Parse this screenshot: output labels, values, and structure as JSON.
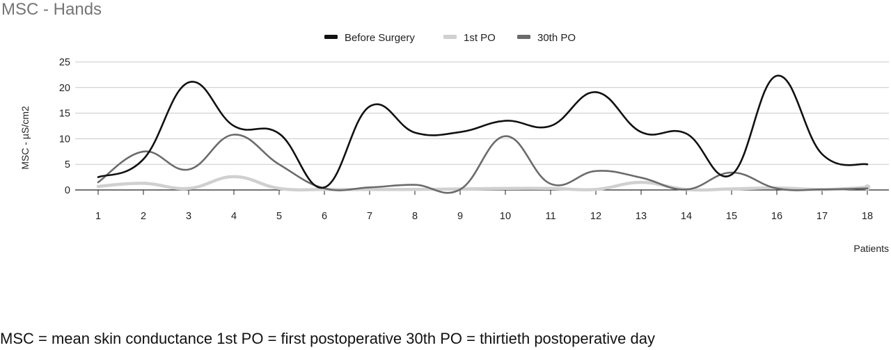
{
  "chart_data": {
    "type": "line",
    "title": "MSC - Hands",
    "xlabel": "Patients",
    "ylabel": "MSC - µS/cm2",
    "categories": [
      "1",
      "2",
      "3",
      "4",
      "5",
      "6",
      "7",
      "8",
      "9",
      "10",
      "11",
      "12",
      "13",
      "14",
      "15",
      "16",
      "17",
      "18"
    ],
    "ylim": [
      0,
      25
    ],
    "yticks": [
      0,
      5,
      10,
      15,
      20,
      25
    ],
    "grid": "horizontal",
    "legend_position": "top-center",
    "series": [
      {
        "name": "Before Surgery",
        "color": "#111111",
        "values": [
          2.5,
          6,
          21,
          12.5,
          11,
          0.5,
          16.3,
          11.2,
          11.3,
          13.5,
          12.5,
          19.1,
          11.3,
          11,
          3,
          22.3,
          7,
          5
        ]
      },
      {
        "name": "1st PO",
        "color": "#d0d0d0",
        "values": [
          0.7,
          1.3,
          0.3,
          2.6,
          0.3,
          0.1,
          0.1,
          0.1,
          0.2,
          0.3,
          0.3,
          0.1,
          1.5,
          0.1,
          0.2,
          0.4,
          0.1,
          0.5
        ]
      },
      {
        "name": "30th PO",
        "color": "#6b6b6b",
        "values": [
          1.5,
          7.5,
          4,
          10.8,
          5,
          0.3,
          0.5,
          1,
          0.1,
          10.5,
          1.2,
          3.7,
          2.4,
          0.1,
          3.4,
          0.3,
          0.1,
          0.3
        ]
      }
    ]
  },
  "caption": "MSC = mean skin conductance 1st PO = first postoperative 30th PO = thirtieth postoperative day"
}
